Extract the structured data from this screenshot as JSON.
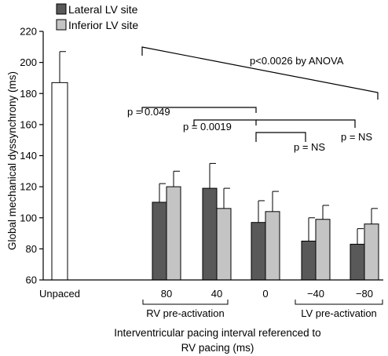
{
  "chart_data": {
    "type": "bar",
    "title": "",
    "ylabel": "Global mechanical dyssynchrony (ms)",
    "xlabel_lines": [
      "Interventricular pacing interval referenced to",
      "RV pacing (ms)"
    ],
    "ylim": [
      60,
      220
    ],
    "yticks": [
      60,
      80,
      100,
      120,
      140,
      160,
      180,
      200,
      220
    ],
    "grid": false,
    "legend_position": "top-left",
    "unpaced": {
      "label": "Unpaced",
      "value": 187,
      "error": 20,
      "color": "#ffffff"
    },
    "categories": [
      "80",
      "40",
      "0",
      "−40",
      "−80"
    ],
    "series": [
      {
        "name": "Lateral LV site",
        "color": "#595959",
        "values": [
          110,
          119,
          97,
          85,
          83
        ],
        "errors": [
          12,
          16,
          14,
          15,
          10
        ]
      },
      {
        "name": "Inferior LV site",
        "color": "#c4c4c4",
        "values": [
          120,
          106,
          104,
          99,
          96
        ],
        "errors": [
          10,
          13,
          13,
          9,
          10
        ]
      }
    ],
    "group_labels": [
      {
        "text": "RV pre-activation",
        "from": 0,
        "to": 1
      },
      {
        "text": "LV pre-activation",
        "from": 3,
        "to": 4
      }
    ],
    "annotations": [
      {
        "text": "p<0.0026 by ANOVA"
      },
      {
        "text": "p = 0.049"
      },
      {
        "text": "p = 0.0019"
      },
      {
        "text": "p = NS"
      },
      {
        "text": "p = NS"
      }
    ]
  }
}
